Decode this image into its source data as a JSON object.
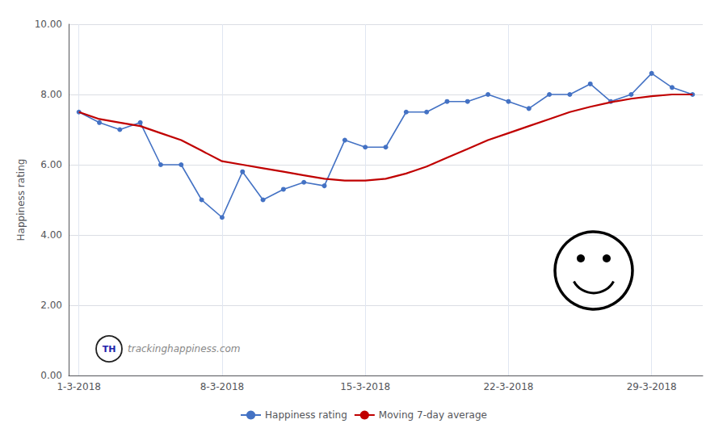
{
  "chart_data": {
    "type": "line",
    "categories": [
      "1-3-2018",
      null,
      null,
      null,
      null,
      null,
      null,
      "8-3-2018",
      null,
      null,
      null,
      null,
      null,
      null,
      "15-3-2018",
      null,
      null,
      null,
      null,
      null,
      null,
      "22-3-2018",
      null,
      null,
      null,
      null,
      null,
      null,
      "29-3-2018",
      null,
      null
    ],
    "series": [
      {
        "name": "Happiness rating",
        "color": "#4472C4",
        "marker": "circle",
        "values": [
          7.5,
          7.2,
          7.0,
          7.2,
          6.0,
          6.0,
          5.0,
          4.5,
          5.8,
          5.0,
          5.3,
          5.5,
          5.4,
          6.7,
          6.5,
          6.5,
          7.5,
          7.5,
          7.8,
          7.8,
          8.0,
          7.8,
          7.6,
          8.0,
          8.0,
          8.3,
          7.8,
          8.0,
          8.6,
          8.2,
          8.0
        ]
      },
      {
        "name": "Moving 7-day average",
        "color": "#C00000",
        "values": [
          7.5,
          7.3,
          7.2,
          7.1,
          6.9,
          6.7,
          6.4,
          6.1,
          6.0,
          5.9,
          5.8,
          5.7,
          5.6,
          5.55,
          5.55,
          5.6,
          5.75,
          5.95,
          6.2,
          6.45,
          6.7,
          6.9,
          7.1,
          7.3,
          7.5,
          7.65,
          7.78,
          7.88,
          7.95,
          8.0,
          8.0
        ]
      }
    ],
    "ylabel": "Happiness rating",
    "ylim": [
      0.0,
      10.0
    ],
    "yticks": [
      {
        "value": 0,
        "label": "0.00"
      },
      {
        "value": 2,
        "label": "2.00"
      },
      {
        "value": 4,
        "label": "4.00"
      },
      {
        "value": 6,
        "label": "6.00"
      },
      {
        "value": 8,
        "label": "8.00"
      },
      {
        "value": 10,
        "label": "10.00"
      }
    ],
    "grid": true,
    "legend": "bottom",
    "annotations": [
      {
        "text": "TH"
      },
      {
        "text": "trackinghappiness.com"
      }
    ]
  }
}
